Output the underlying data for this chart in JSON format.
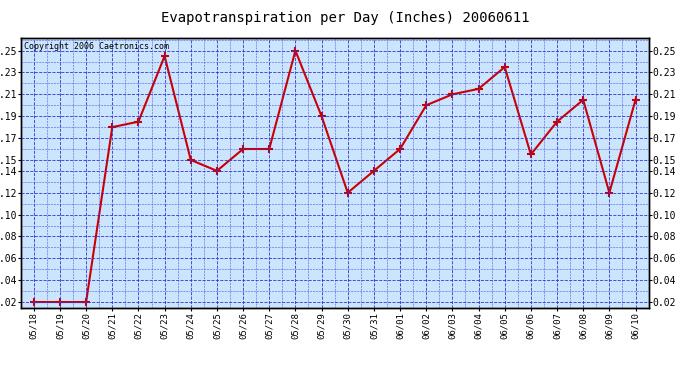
{
  "title": "Evapotranspiration per Day (Inches) 20060611",
  "copyright_text": "Copyright 2006 Caetronics.com",
  "x_labels": [
    "05/18",
    "05/19",
    "05/20",
    "05/21",
    "05/22",
    "05/23",
    "05/24",
    "05/25",
    "05/26",
    "05/27",
    "05/28",
    "05/29",
    "05/30",
    "05/31",
    "06/01",
    "06/02",
    "06/03",
    "06/04",
    "06/05",
    "06/06",
    "06/07",
    "06/08",
    "06/09",
    "06/10"
  ],
  "y_values": [
    0.02,
    0.02,
    0.02,
    0.18,
    0.185,
    0.245,
    0.15,
    0.14,
    0.16,
    0.16,
    0.25,
    0.19,
    0.12,
    0.14,
    0.16,
    0.2,
    0.21,
    0.215,
    0.235,
    0.155,
    0.185,
    0.205,
    0.12,
    0.205
  ],
  "line_color": "#cc0000",
  "marker_color": "#cc0000",
  "plot_bg_color": "#cce5ff",
  "grid_color": "#3333cc",
  "title_color": "#000000",
  "y_ticks": [
    0.02,
    0.04,
    0.06,
    0.08,
    0.1,
    0.12,
    0.14,
    0.15,
    0.17,
    0.19,
    0.21,
    0.23,
    0.25
  ],
  "figure_bg_color": "#ffffff",
  "border_color": "#000000"
}
